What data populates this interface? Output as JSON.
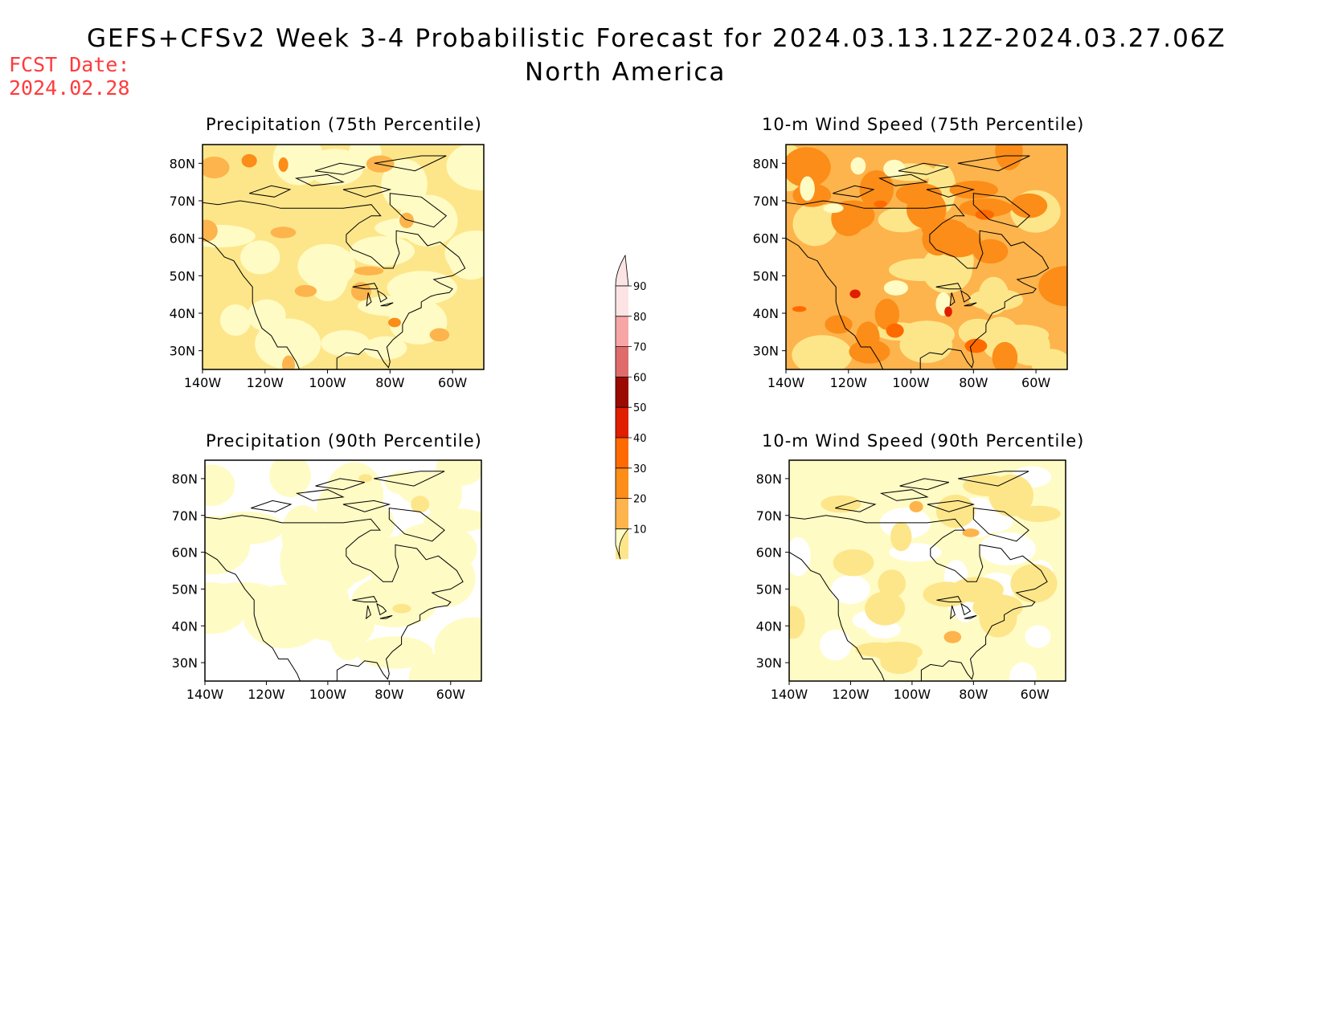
{
  "header": {
    "title": "GEFS+CFSv2 Week 3-4 Probabilistic Forecast for 2024.03.13.12Z-2024.03.27.06Z",
    "region": "North America",
    "fcst_date_label": "FCST Date:",
    "fcst_date_value": "2024.02.28"
  },
  "panels": [
    {
      "id": "precip75",
      "title": "Precipitation (75th Percentile)"
    },
    {
      "id": "wind75",
      "title": "10-m Wind Speed (75th Percentile)"
    },
    {
      "id": "precip90",
      "title": "Precipitation (90th Percentile)"
    },
    {
      "id": "wind90",
      "title": "10-m Wind Speed (90th Percentile)"
    }
  ],
  "axes": {
    "lat_ticks": [
      "80N",
      "70N",
      "60N",
      "50N",
      "40N",
      "30N"
    ],
    "lon_ticks": [
      "140W",
      "120W",
      "100W",
      "80W",
      "60W"
    ]
  },
  "colorbar": {
    "levels": [
      "10",
      "20",
      "30",
      "40",
      "50",
      "60",
      "70",
      "80",
      "90"
    ],
    "colors": [
      "#fffbc4",
      "#fde68a",
      "#fdb44c",
      "#fb8d18",
      "#ff6a00",
      "#e01e00",
      "#9a0a00",
      "#e06b6b",
      "#f7a6a6",
      "#fde4e4"
    ]
  }
}
